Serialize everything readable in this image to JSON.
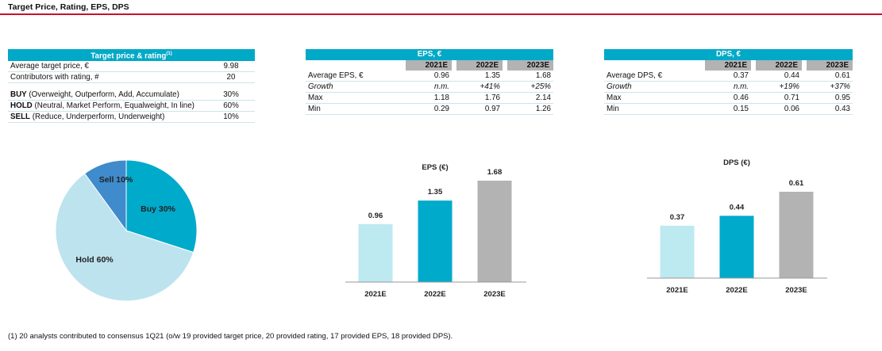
{
  "title": "Target Price, Rating, EPS, DPS",
  "colors": {
    "accent_red": "#c8102e",
    "header_teal": "#00a9c7",
    "year_grey": "#b3b3b3",
    "bar_light": "#bde9f1",
    "bar_teal": "#00aacb",
    "bar_grey": "#b3b3b3",
    "pie_buy": "#00aacb",
    "pie_hold": "#bde3ee",
    "pie_sell": "#3f8bcc"
  },
  "target_table": {
    "header": "Target price & rating",
    "header_note": "(1)",
    "rows": [
      {
        "label_bold": "",
        "label": "Average target price, €",
        "value": "9.98"
      },
      {
        "label_bold": "",
        "label": "Contributors with rating, #",
        "value": "20"
      },
      {
        "label_bold": "BUY",
        "label": " (Overweight, Outperform, Add, Accumulate)",
        "value": "30%"
      },
      {
        "label_bold": "HOLD",
        "label": " (Neutral, Market Perform, Equalweight, In line)",
        "value": "60%"
      },
      {
        "label_bold": "SELL",
        "label": " (Reduce, Underperform, Underweight)",
        "value": "10%"
      }
    ]
  },
  "eps_table": {
    "header": "EPS, €",
    "years": [
      "2021E",
      "2022E",
      "2023E"
    ],
    "rows": [
      {
        "label": "Average EPS, €",
        "values": [
          "0.96",
          "1.35",
          "1.68"
        ]
      },
      {
        "label": "Growth",
        "values": [
          "n.m.",
          "+41%",
          "+25%"
        ]
      },
      {
        "label": "Max",
        "values": [
          "1.18",
          "1.76",
          "2.14"
        ]
      },
      {
        "label": "Min",
        "values": [
          "0.29",
          "0.97",
          "1.26"
        ]
      }
    ]
  },
  "dps_table": {
    "header": "DPS, €",
    "years": [
      "2021E",
      "2022E",
      "2023E"
    ],
    "rows": [
      {
        "label": "Average DPS, €",
        "values": [
          "0.37",
          "0.44",
          "0.61"
        ]
      },
      {
        "label": "Growth",
        "values": [
          "n.m.",
          "+19%",
          "+37%"
        ]
      },
      {
        "label": "Max",
        "values": [
          "0.46",
          "0.71",
          "0.95"
        ]
      },
      {
        "label": "Min",
        "values": [
          "0.15",
          "0.06",
          "0.43"
        ]
      }
    ]
  },
  "chart_data": [
    {
      "type": "pie",
      "labels": [
        "Buy 30%",
        "Hold 60%",
        "Sell 10%"
      ],
      "values": [
        30,
        60,
        10
      ],
      "title": ""
    },
    {
      "type": "bar",
      "title": "EPS (€)",
      "categories": [
        "2021E",
        "2022E",
        "2023E"
      ],
      "values": [
        0.96,
        1.35,
        1.68
      ],
      "labels": [
        "0.96",
        "1.35",
        "1.68"
      ],
      "ylim": [
        0,
        1.9
      ]
    },
    {
      "type": "bar",
      "title": "DPS (€)",
      "categories": [
        "2021E",
        "2022E",
        "2023E"
      ],
      "values": [
        0.37,
        0.44,
        0.61
      ],
      "labels": [
        "0.37",
        "0.44",
        "0.61"
      ],
      "ylim": [
        0,
        0.7
      ]
    }
  ],
  "footnote": "(1) 20 analysts contributed to consensus 1Q21 (o/w 19 provided target price, 20 provided rating, 17 provided EPS, 18 provided DPS)."
}
